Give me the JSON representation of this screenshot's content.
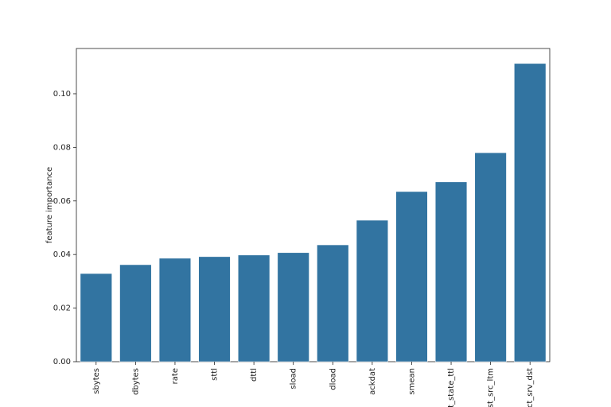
{
  "chart_data": {
    "type": "bar",
    "ylabel": "feature importance",
    "categories": [
      "sbytes",
      "dbytes",
      "rate",
      "sttl",
      "dttl",
      "sload",
      "dload",
      "ackdat",
      "smean",
      "ct_state_ttl",
      "dst_src_ltm",
      "ct_srv_dst"
    ],
    "values": [
      0.0329,
      0.0362,
      0.0386,
      0.0392,
      0.0398,
      0.0407,
      0.0436,
      0.0528,
      0.0635,
      0.0671,
      0.078,
      0.1113
    ],
    "color": "#3274a1",
    "ylim": [
      0,
      0.1169
    ],
    "yticks": [
      {
        "value": 0,
        "label": "0.00"
      },
      {
        "value": 0.02,
        "label": "0.02"
      },
      {
        "value": 0.04,
        "label": "0.04"
      },
      {
        "value": 0.06,
        "label": "0.06"
      },
      {
        "value": 0.08,
        "label": "0.08"
      },
      {
        "value": 0.1,
        "label": "0.10"
      }
    ],
    "grid": false
  }
}
